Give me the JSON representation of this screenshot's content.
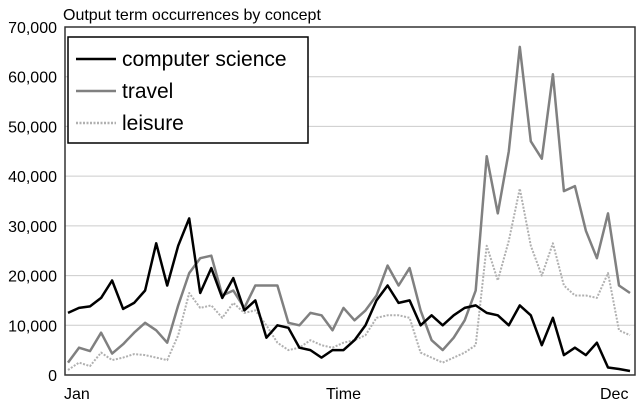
{
  "chart_data": {
    "type": "line",
    "title": "Output term occurrences by concept",
    "xlabel": "Time",
    "ylabel": "",
    "x_tick_labels": [
      "Jan",
      "Dec"
    ],
    "y_ticks": [
      0,
      10000,
      20000,
      30000,
      40000,
      50000,
      60000,
      70000
    ],
    "y_tick_labels": [
      "0",
      "10,000",
      "20,000",
      "30,000",
      "40,000",
      "50,000",
      "60,000",
      "70,000"
    ],
    "ylim": [
      0,
      70000
    ],
    "grid": "horizontal",
    "legend_position": "top-left",
    "series": [
      {
        "name": "computer science",
        "color": "#000000",
        "style": "solid",
        "values": [
          12500,
          13500,
          13800,
          15500,
          19000,
          13300,
          14500,
          17000,
          26500,
          18000,
          26000,
          31500,
          16500,
          21500,
          15500,
          19500,
          13000,
          15000,
          7500,
          10000,
          9500,
          5500,
          5000,
          3500,
          5000,
          5000,
          7000,
          10000,
          15000,
          18000,
          14500,
          15000,
          10000,
          12000,
          10000,
          12000,
          13500,
          14000,
          12500,
          12000,
          10000,
          14000,
          12000,
          6000,
          11500,
          4000,
          5500,
          4000,
          6500,
          1500,
          1200,
          800
        ]
      },
      {
        "name": "travel",
        "color": "#808080",
        "style": "solid",
        "values": [
          2500,
          5500,
          4800,
          8500,
          4300,
          6200,
          8500,
          10500,
          9000,
          6500,
          14000,
          20500,
          23500,
          24000,
          16000,
          17000,
          13500,
          18000,
          18000,
          18000,
          10500,
          10000,
          12500,
          12000,
          9000,
          13500,
          11000,
          13000,
          16000,
          22000,
          18000,
          21500,
          13000,
          7000,
          5000,
          7500,
          11000,
          17000,
          44000,
          32500,
          45000,
          66000,
          47000,
          43500,
          60500,
          37000,
          38000,
          29000,
          23500,
          32500,
          18000,
          16500
        ]
      },
      {
        "name": "leisure",
        "color": "#b0b0b0",
        "style": "dotted",
        "values": [
          1000,
          2500,
          1800,
          4500,
          3000,
          3500,
          4200,
          4000,
          3500,
          3000,
          8000,
          16500,
          13500,
          14000,
          11500,
          14500,
          12500,
          13000,
          10000,
          6500,
          5000,
          5500,
          7000,
          6000,
          5500,
          6500,
          7000,
          8000,
          11500,
          12000,
          12000,
          11500,
          4500,
          3500,
          2500,
          3500,
          4500,
          6000,
          26000,
          19000,
          27000,
          37500,
          26000,
          20000,
          26500,
          18000,
          16000,
          16000,
          15500,
          20500,
          9000,
          8000
        ]
      }
    ]
  }
}
